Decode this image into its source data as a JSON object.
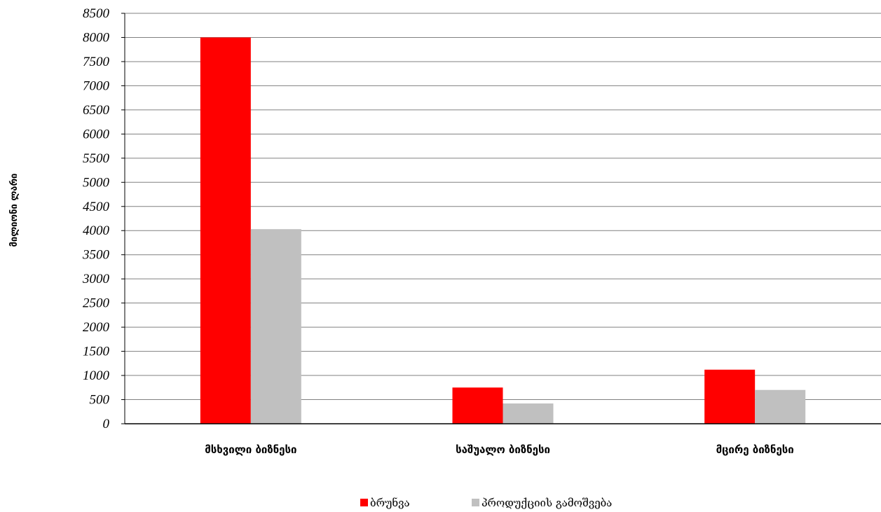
{
  "chart_data": {
    "type": "bar",
    "ylabel": "მილიონი ლარი",
    "xlabel": "",
    "ylim": [
      0,
      8500
    ],
    "ytick_step": 500,
    "yticks": [
      "0",
      "500",
      "1000",
      "1500",
      "2000",
      "2500",
      "3000",
      "3500",
      "4000",
      "4500",
      "5000",
      "5500",
      "6000",
      "6500",
      "7000",
      "7500",
      "8000",
      "8500"
    ],
    "categories": [
      "მსხვილი ბიზნესი",
      "საშუალო ბიზნესი",
      "მცირე ბიზნესი"
    ],
    "series": [
      {
        "name": "ბრუნვა",
        "values": [
          8000,
          750,
          1120
        ],
        "color": "#ff0000"
      },
      {
        "name": "პროდუქციის გამოშვება",
        "values": [
          4030,
          420,
          700
        ],
        "color": "#c0c0c0"
      }
    ],
    "grid": true,
    "legend": "bottom"
  }
}
